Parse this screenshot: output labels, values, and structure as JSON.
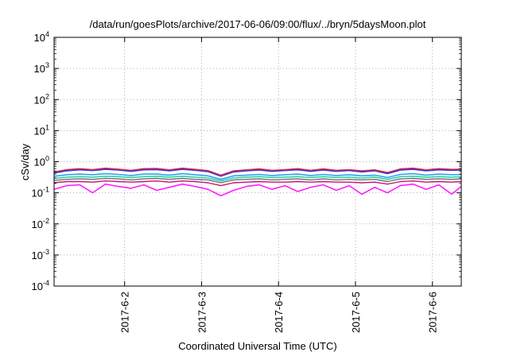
{
  "chart_data": {
    "type": "line",
    "title": "/data/run/goesPlots/archive/2017-06-06/09:00/flux/../bryn/5daysMoon.plot",
    "xlabel": "Coordinated Universal Time (UTC)",
    "ylabel": "cSv/day",
    "yscale": "log",
    "ylim": [
      0.0001,
      10000
    ],
    "xlim": [
      "2017-06-01T02:00",
      "2017-06-06T09:00"
    ],
    "ytick_labels": [
      {
        "base": "10",
        "exp": "-4"
      },
      {
        "base": "10",
        "exp": "-3"
      },
      {
        "base": "10",
        "exp": "-2"
      },
      {
        "base": "10",
        "exp": "-1"
      },
      {
        "base": "10",
        "exp": "0"
      },
      {
        "base": "10",
        "exp": "1"
      },
      {
        "base": "10",
        "exp": "2"
      },
      {
        "base": "10",
        "exp": "3"
      },
      {
        "base": "10",
        "exp": "4"
      }
    ],
    "xticks": [
      "2017-6-2",
      "2017-6-3",
      "2017-6-4",
      "2017-6-5",
      "2017-6-6"
    ],
    "grid": true,
    "legend": "none",
    "series_styles": [
      {
        "color": "#3b33d6",
        "width": 2.2
      },
      {
        "color": "#e0274a",
        "width": 1.4
      },
      {
        "color": "#2aa7e8",
        "width": 1.6
      },
      {
        "color": "#2fcfa8",
        "width": 1.6
      },
      {
        "color": "#707070",
        "width": 1.4
      },
      {
        "color": "#c0137a",
        "width": 1.4
      },
      {
        "color": "#ff1fff",
        "width": 1.6
      }
    ],
    "series": [
      {
        "x": [
          "2017-06-01T02:00",
          "2017-06-01T06:00",
          "2017-06-01T10:00",
          "2017-06-01T14:00",
          "2017-06-01T18:00",
          "2017-06-01T22:00",
          "2017-06-02T02:00",
          "2017-06-02T06:00",
          "2017-06-02T10:00",
          "2017-06-02T14:00",
          "2017-06-02T18:00",
          "2017-06-02T22:00",
          "2017-06-03T02:00",
          "2017-06-03T06:00",
          "2017-06-03T10:00",
          "2017-06-03T14:00",
          "2017-06-03T18:00",
          "2017-06-03T22:00",
          "2017-06-04T02:00",
          "2017-06-04T06:00",
          "2017-06-04T10:00",
          "2017-06-04T14:00",
          "2017-06-04T18:00",
          "2017-06-04T22:00",
          "2017-06-05T02:00",
          "2017-06-05T06:00",
          "2017-06-05T10:00",
          "2017-06-05T14:00",
          "2017-06-05T18:00",
          "2017-06-05T22:00",
          "2017-06-06T02:00",
          "2017-06-06T06:00",
          "2017-06-06T09:00"
        ],
        "y": [
          0.44,
          0.52,
          0.56,
          0.53,
          0.58,
          0.55,
          0.5,
          0.56,
          0.57,
          0.52,
          0.58,
          0.54,
          0.49,
          0.35,
          0.48,
          0.52,
          0.55,
          0.5,
          0.53,
          0.56,
          0.5,
          0.55,
          0.5,
          0.53,
          0.48,
          0.52,
          0.42,
          0.55,
          0.58,
          0.52,
          0.56,
          0.54,
          0.55
        ]
      },
      {
        "x": [
          "2017-06-01T02:00",
          "2017-06-01T06:00",
          "2017-06-01T10:00",
          "2017-06-01T14:00",
          "2017-06-01T18:00",
          "2017-06-01T22:00",
          "2017-06-02T02:00",
          "2017-06-02T06:00",
          "2017-06-02T10:00",
          "2017-06-02T14:00",
          "2017-06-02T18:00",
          "2017-06-02T22:00",
          "2017-06-03T02:00",
          "2017-06-03T06:00",
          "2017-06-03T10:00",
          "2017-06-03T14:00",
          "2017-06-03T18:00",
          "2017-06-03T22:00",
          "2017-06-04T02:00",
          "2017-06-04T06:00",
          "2017-06-04T10:00",
          "2017-06-04T14:00",
          "2017-06-04T18:00",
          "2017-06-04T22:00",
          "2017-06-05T02:00",
          "2017-06-05T06:00",
          "2017-06-05T10:00",
          "2017-06-05T14:00",
          "2017-06-05T18:00",
          "2017-06-05T22:00",
          "2017-06-06T02:00",
          "2017-06-06T06:00",
          "2017-06-06T09:00"
        ],
        "y": [
          0.47,
          0.56,
          0.6,
          0.56,
          0.62,
          0.58,
          0.53,
          0.6,
          0.61,
          0.55,
          0.62,
          0.57,
          0.52,
          0.37,
          0.51,
          0.55,
          0.59,
          0.53,
          0.56,
          0.6,
          0.53,
          0.59,
          0.53,
          0.56,
          0.51,
          0.55,
          0.45,
          0.59,
          0.62,
          0.55,
          0.6,
          0.57,
          0.58
        ]
      },
      {
        "x": [
          "2017-06-01T02:00",
          "2017-06-01T06:00",
          "2017-06-01T10:00",
          "2017-06-01T14:00",
          "2017-06-01T18:00",
          "2017-06-01T22:00",
          "2017-06-02T02:00",
          "2017-06-02T06:00",
          "2017-06-02T10:00",
          "2017-06-02T14:00",
          "2017-06-02T18:00",
          "2017-06-02T22:00",
          "2017-06-03T02:00",
          "2017-06-03T06:00",
          "2017-06-03T10:00",
          "2017-06-03T14:00",
          "2017-06-03T18:00",
          "2017-06-03T22:00",
          "2017-06-04T02:00",
          "2017-06-04T06:00",
          "2017-06-04T10:00",
          "2017-06-04T14:00",
          "2017-06-04T18:00",
          "2017-06-04T22:00",
          "2017-06-05T02:00",
          "2017-06-05T06:00",
          "2017-06-05T10:00",
          "2017-06-05T14:00",
          "2017-06-05T18:00",
          "2017-06-05T22:00",
          "2017-06-06T02:00",
          "2017-06-06T06:00",
          "2017-06-06T09:00"
        ],
        "y": [
          0.34,
          0.38,
          0.4,
          0.38,
          0.41,
          0.39,
          0.36,
          0.4,
          0.4,
          0.37,
          0.41,
          0.38,
          0.35,
          0.27,
          0.35,
          0.37,
          0.39,
          0.36,
          0.38,
          0.4,
          0.36,
          0.39,
          0.36,
          0.38,
          0.35,
          0.37,
          0.31,
          0.39,
          0.41,
          0.37,
          0.4,
          0.38,
          0.39
        ]
      },
      {
        "x": [
          "2017-06-01T02:00",
          "2017-06-01T06:00",
          "2017-06-01T10:00",
          "2017-06-01T14:00",
          "2017-06-01T18:00",
          "2017-06-01T22:00",
          "2017-06-02T02:00",
          "2017-06-02T06:00",
          "2017-06-02T10:00",
          "2017-06-02T14:00",
          "2017-06-02T18:00",
          "2017-06-02T22:00",
          "2017-06-03T02:00",
          "2017-06-03T06:00",
          "2017-06-03T10:00",
          "2017-06-03T14:00",
          "2017-06-03T18:00",
          "2017-06-03T22:00",
          "2017-06-04T02:00",
          "2017-06-04T06:00",
          "2017-06-04T10:00",
          "2017-06-04T14:00",
          "2017-06-04T18:00",
          "2017-06-04T22:00",
          "2017-06-05T02:00",
          "2017-06-05T06:00",
          "2017-06-05T10:00",
          "2017-06-05T14:00",
          "2017-06-05T18:00",
          "2017-06-05T22:00",
          "2017-06-06T02:00",
          "2017-06-06T06:00",
          "2017-06-06T09:00"
        ],
        "y": [
          0.29,
          0.32,
          0.33,
          0.32,
          0.34,
          0.33,
          0.31,
          0.33,
          0.34,
          0.32,
          0.34,
          0.32,
          0.3,
          0.24,
          0.3,
          0.32,
          0.33,
          0.31,
          0.32,
          0.33,
          0.31,
          0.33,
          0.31,
          0.32,
          0.3,
          0.32,
          0.27,
          0.33,
          0.34,
          0.32,
          0.33,
          0.32,
          0.33
        ]
      },
      {
        "x": [
          "2017-06-01T02:00",
          "2017-06-01T06:00",
          "2017-06-01T10:00",
          "2017-06-01T14:00",
          "2017-06-01T18:00",
          "2017-06-01T22:00",
          "2017-06-02T02:00",
          "2017-06-02T06:00",
          "2017-06-02T10:00",
          "2017-06-02T14:00",
          "2017-06-02T18:00",
          "2017-06-02T22:00",
          "2017-06-03T02:00",
          "2017-06-03T06:00",
          "2017-06-03T10:00",
          "2017-06-03T14:00",
          "2017-06-03T18:00",
          "2017-06-03T22:00",
          "2017-06-04T02:00",
          "2017-06-04T06:00",
          "2017-06-04T10:00",
          "2017-06-04T14:00",
          "2017-06-04T18:00",
          "2017-06-04T22:00",
          "2017-06-05T02:00",
          "2017-06-05T06:00",
          "2017-06-05T10:00",
          "2017-06-05T14:00",
          "2017-06-05T18:00",
          "2017-06-05T22:00",
          "2017-06-06T02:00",
          "2017-06-06T06:00",
          "2017-06-06T09:00"
        ],
        "y": [
          0.25,
          0.27,
          0.28,
          0.27,
          0.29,
          0.28,
          0.26,
          0.28,
          0.29,
          0.27,
          0.29,
          0.27,
          0.26,
          0.21,
          0.26,
          0.27,
          0.28,
          0.26,
          0.27,
          0.28,
          0.26,
          0.28,
          0.26,
          0.27,
          0.26,
          0.27,
          0.23,
          0.28,
          0.29,
          0.27,
          0.28,
          0.27,
          0.28
        ]
      },
      {
        "x": [
          "2017-06-01T02:00",
          "2017-06-01T06:00",
          "2017-06-01T10:00",
          "2017-06-01T14:00",
          "2017-06-01T18:00",
          "2017-06-01T22:00",
          "2017-06-02T02:00",
          "2017-06-02T06:00",
          "2017-06-02T10:00",
          "2017-06-02T14:00",
          "2017-06-02T18:00",
          "2017-06-02T22:00",
          "2017-06-03T02:00",
          "2017-06-03T06:00",
          "2017-06-03T10:00",
          "2017-06-03T14:00",
          "2017-06-03T18:00",
          "2017-06-03T22:00",
          "2017-06-04T02:00",
          "2017-06-04T06:00",
          "2017-06-04T10:00",
          "2017-06-04T14:00",
          "2017-06-04T18:00",
          "2017-06-04T22:00",
          "2017-06-05T02:00",
          "2017-06-05T06:00",
          "2017-06-05T10:00",
          "2017-06-05T14:00",
          "2017-06-05T18:00",
          "2017-06-05T22:00",
          "2017-06-06T02:00",
          "2017-06-06T06:00",
          "2017-06-06T09:00"
        ],
        "y": [
          0.21,
          0.23,
          0.23,
          0.22,
          0.24,
          0.23,
          0.22,
          0.23,
          0.24,
          0.22,
          0.24,
          0.23,
          0.21,
          0.17,
          0.21,
          0.22,
          0.23,
          0.22,
          0.22,
          0.23,
          0.22,
          0.23,
          0.22,
          0.22,
          0.21,
          0.22,
          0.19,
          0.23,
          0.24,
          0.22,
          0.23,
          0.22,
          0.23
        ]
      },
      {
        "x": [
          "2017-06-01T02:00",
          "2017-06-01T06:00",
          "2017-06-01T10:00",
          "2017-06-01T14:00",
          "2017-06-01T18:00",
          "2017-06-01T22:00",
          "2017-06-02T02:00",
          "2017-06-02T06:00",
          "2017-06-02T10:00",
          "2017-06-02T14:00",
          "2017-06-02T18:00",
          "2017-06-02T22:00",
          "2017-06-03T02:00",
          "2017-06-03T06:00",
          "2017-06-03T10:00",
          "2017-06-03T14:00",
          "2017-06-03T18:00",
          "2017-06-03T22:00",
          "2017-06-04T02:00",
          "2017-06-04T06:00",
          "2017-06-04T10:00",
          "2017-06-04T14:00",
          "2017-06-04T18:00",
          "2017-06-04T22:00",
          "2017-06-05T02:00",
          "2017-06-05T06:00",
          "2017-06-05T10:00",
          "2017-06-05T14:00",
          "2017-06-05T18:00",
          "2017-06-05T22:00",
          "2017-06-06T02:00",
          "2017-06-06T06:00",
          "2017-06-06T09:00"
        ],
        "y": [
          0.13,
          0.17,
          0.18,
          0.1,
          0.19,
          0.16,
          0.14,
          0.18,
          0.12,
          0.15,
          0.19,
          0.16,
          0.13,
          0.08,
          0.12,
          0.16,
          0.18,
          0.13,
          0.17,
          0.11,
          0.15,
          0.18,
          0.12,
          0.17,
          0.09,
          0.15,
          0.1,
          0.17,
          0.19,
          0.13,
          0.18,
          0.09,
          0.16
        ]
      }
    ]
  }
}
